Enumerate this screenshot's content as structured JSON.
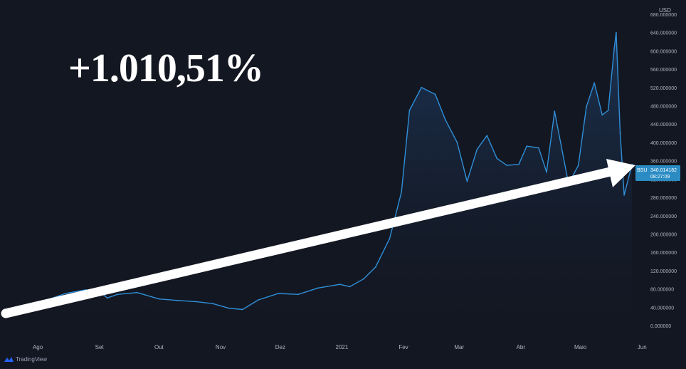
{
  "headline": "+1.010,51%",
  "currency_label": "USD",
  "brand": "TradingView",
  "price_tag": {
    "symbol": "BSU",
    "value": "340.014182",
    "countdown": "08:27:09"
  },
  "colors": {
    "background": "#131722",
    "line": "#2f8fd8",
    "price_tag": "#2b8cc4",
    "arrow": "#ffffff",
    "axis_text": "#b2b5be"
  },
  "chart_data": {
    "type": "area",
    "title": "",
    "xlabel": "",
    "ylabel": "",
    "y_ticks": [
      "0.000000",
      "40.000000",
      "80.000000",
      "120.000000",
      "160.000000",
      "200.000000",
      "240.000000",
      "280.000000",
      "320.000000",
      "360.000000",
      "400.000000",
      "440.000000",
      "480.000000",
      "520.000000",
      "560.000000",
      "600.000000",
      "640.000000",
      "680.000000"
    ],
    "x_ticks": [
      "Ago",
      "Set",
      "Out",
      "Nov",
      "Dez",
      "2021",
      "Fev",
      "Mar",
      "Abr",
      "Maio",
      "Jun"
    ],
    "ylim": [
      0,
      680
    ],
    "grid": false,
    "legend": "none",
    "series": [
      {
        "x": [
          "2020-07-15",
          "2020-07-25",
          "2020-08-05",
          "2020-08-15",
          "2020-08-25",
          "2020-09-01",
          "2020-09-05",
          "2020-09-10",
          "2020-09-20",
          "2020-10-01",
          "2020-10-10",
          "2020-10-20",
          "2020-10-28",
          "2020-11-05",
          "2020-11-12",
          "2020-11-20",
          "2020-11-30",
          "2020-12-10",
          "2020-12-20",
          "2020-12-31",
          "2021-01-05",
          "2021-01-12",
          "2021-01-18",
          "2021-01-25",
          "2021-01-31",
          "2021-02-04",
          "2021-02-10",
          "2021-02-17",
          "2021-02-22",
          "2021-02-28",
          "2021-03-05",
          "2021-03-10",
          "2021-03-15",
          "2021-03-20",
          "2021-03-25",
          "2021-03-31",
          "2021-04-04",
          "2021-04-10",
          "2021-04-14",
          "2021-04-18",
          "2021-04-25",
          "2021-04-30",
          "2021-05-04",
          "2021-05-08",
          "2021-05-12",
          "2021-05-15",
          "2021-05-18",
          "2021-05-19",
          "2021-05-21",
          "2021-05-23",
          "2021-05-27"
        ],
        "y": [
          35,
          40,
          55,
          70,
          78,
          75,
          60,
          68,
          72,
          58,
          55,
          52,
          48,
          38,
          35,
          56,
          70,
          68,
          82,
          90,
          85,
          102,
          128,
          190,
          292,
          470,
          520,
          505,
          450,
          400,
          315,
          385,
          415,
          365,
          350,
          352,
          392,
          388,
          335,
          468,
          310,
          350,
          478,
          530,
          460,
          470,
          605,
          640,
          420,
          285,
          352
        ]
      }
    ]
  }
}
